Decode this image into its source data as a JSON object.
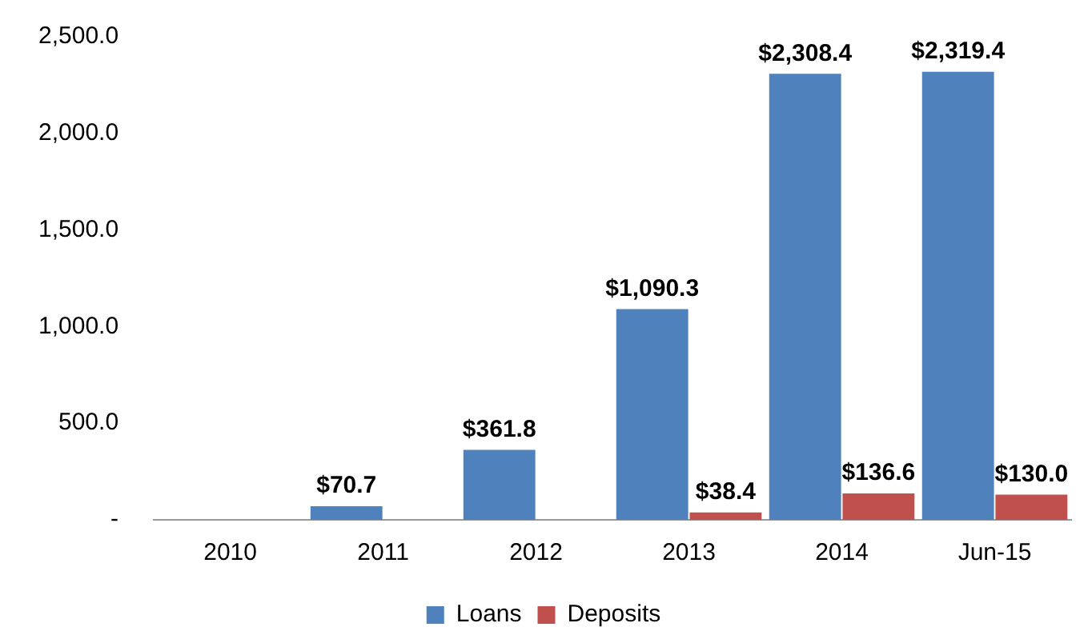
{
  "chart_data": {
    "type": "bar",
    "categories": [
      "2010",
      "2011",
      "2012",
      "2013",
      "2014",
      "Jun-15"
    ],
    "series": [
      {
        "name": "Loans",
        "color": "#4f81bd",
        "values": [
          null,
          70.7,
          361.8,
          1090.3,
          2308.4,
          2319.4
        ],
        "value_labels": [
          null,
          "$70.7",
          "$361.8",
          "$1,090.3",
          "$2,308.4",
          "$2,319.4"
        ]
      },
      {
        "name": "Deposits",
        "color": "#c0504d",
        "values": [
          null,
          null,
          null,
          38.4,
          136.6,
          130.0
        ],
        "value_labels": [
          null,
          null,
          null,
          "$38.4",
          "$136.6",
          "$130.0"
        ]
      }
    ],
    "ylim": [
      0,
      2500
    ],
    "yticks": [
      {
        "value": 0,
        "label": "-"
      },
      {
        "value": 500,
        "label": "500.0"
      },
      {
        "value": 1000,
        "label": "1,000.0"
      },
      {
        "value": 1500,
        "label": "1,500.0"
      },
      {
        "value": 2000,
        "label": "2,000.0"
      },
      {
        "value": 2500,
        "label": "2,500.0"
      }
    ],
    "grid": false,
    "legend": "bottom"
  }
}
